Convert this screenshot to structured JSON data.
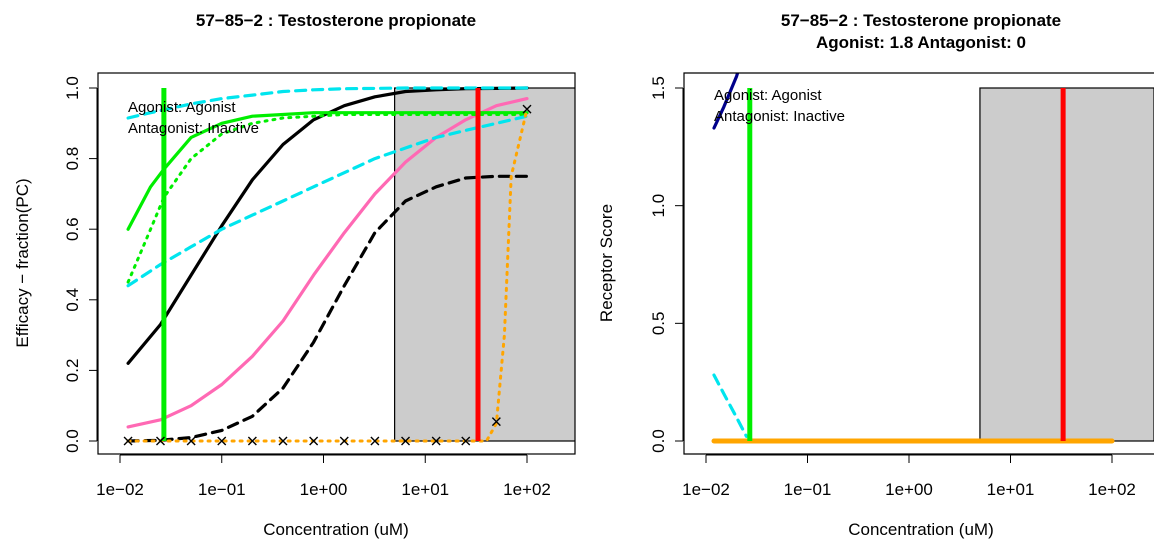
{
  "chart_data": [
    {
      "type": "line",
      "title": "57−85−2 : Testosterone propionate",
      "subtitle": "",
      "xlabel": "Concentration (uM)",
      "ylabel": "Efficacy − fraction(PC)",
      "xscale": "log",
      "xlim": [
        0.008,
        300
      ],
      "ylim": [
        -0.03,
        1.05
      ],
      "x_ticks": [
        0.01,
        0.1,
        1,
        10,
        100
      ],
      "x_tick_labels": [
        "1e−02",
        "1e−01",
        "1e+00",
        "1e+01",
        "1e+02"
      ],
      "y_ticks": [
        0,
        0.2,
        0.4,
        0.6,
        0.8,
        1.0
      ],
      "y_tick_labels": [
        "0.0",
        "0.2",
        "0.4",
        "0.6",
        "0.8",
        "1.0"
      ],
      "legend": [
        "Agonist: Agonist",
        "Antagonist: Inactive"
      ],
      "legend_position": "top-left",
      "grid": false,
      "shaded_region": {
        "x": [
          5,
          300
        ],
        "y": [
          0,
          1.0
        ],
        "color": "#cccccc"
      },
      "vlines": [
        {
          "x": 0.027,
          "color": "#00ee00"
        },
        {
          "x": 33,
          "color": "#ff0000"
        }
      ],
      "series": [
        {
          "style": "solid",
          "color": "#000000",
          "x": [
            0.012,
            0.025,
            0.05,
            0.1,
            0.2,
            0.4,
            0.8,
            1.6,
            3.2,
            6.4,
            12.8,
            25,
            50,
            100
          ],
          "y": [
            0.22,
            0.33,
            0.47,
            0.61,
            0.74,
            0.84,
            0.91,
            0.95,
            0.975,
            0.99,
            0.995,
            0.998,
            0.999,
            1.0
          ]
        },
        {
          "style": "dashed",
          "color": "#000000",
          "x": [
            0.012,
            0.025,
            0.05,
            0.1,
            0.2,
            0.4,
            0.8,
            1.6,
            3.2,
            6.4,
            12.8,
            25,
            50,
            100
          ],
          "y": [
            0.0,
            0.002,
            0.01,
            0.03,
            0.07,
            0.15,
            0.28,
            0.44,
            0.59,
            0.68,
            0.72,
            0.745,
            0.75,
            0.75
          ]
        },
        {
          "style": "solid",
          "color": "#ff69b4",
          "x": [
            0.012,
            0.025,
            0.05,
            0.1,
            0.2,
            0.4,
            0.8,
            1.6,
            3.2,
            6.4,
            12.8,
            25,
            50,
            100
          ],
          "y": [
            0.04,
            0.06,
            0.1,
            0.16,
            0.24,
            0.34,
            0.47,
            0.59,
            0.7,
            0.79,
            0.86,
            0.91,
            0.95,
            0.97
          ]
        },
        {
          "style": "solid",
          "color": "#00ee00",
          "x": [
            0.012,
            0.02,
            0.027,
            0.05,
            0.1,
            0.2,
            0.4,
            0.8,
            1.6,
            3.2,
            6.4,
            12.8,
            25,
            50,
            100
          ],
          "y": [
            0.6,
            0.72,
            0.77,
            0.86,
            0.9,
            0.92,
            0.925,
            0.93,
            0.93,
            0.93,
            0.93,
            0.93,
            0.93,
            0.93,
            0.93
          ]
        },
        {
          "style": "dotted",
          "color": "#00ee00",
          "x": [
            0.012,
            0.02,
            0.027,
            0.05,
            0.1,
            0.2,
            0.4,
            0.8,
            1.6,
            3.2,
            6.4,
            12.8,
            25,
            50,
            100
          ],
          "y": [
            0.45,
            0.6,
            0.69,
            0.8,
            0.87,
            0.9,
            0.915,
            0.92,
            0.925,
            0.925,
            0.925,
            0.925,
            0.925,
            0.925,
            0.925
          ]
        },
        {
          "style": "dashed",
          "color": "#00e5ee",
          "x": [
            0.012,
            0.02,
            0.05,
            0.1,
            0.2,
            0.4,
            0.8,
            1.6,
            3.2,
            6.4,
            12.8,
            25,
            50,
            100
          ],
          "y": [
            0.915,
            0.93,
            0.955,
            0.97,
            0.98,
            0.99,
            0.995,
            0.998,
            0.999,
            1.0,
            1.0,
            1.0,
            1.0,
            1.0
          ]
        },
        {
          "style": "dashed",
          "color": "#00e5ee",
          "x": [
            0.012,
            0.025,
            0.05,
            0.1,
            0.2,
            0.4,
            0.8,
            1.6,
            3.2,
            6.4,
            12.8,
            25,
            50,
            100
          ],
          "y": [
            0.44,
            0.5,
            0.55,
            0.6,
            0.64,
            0.68,
            0.72,
            0.76,
            0.8,
            0.83,
            0.86,
            0.88,
            0.9,
            0.92
          ]
        },
        {
          "style": "dotted",
          "color": "#ffa500",
          "x": [
            0.012,
            0.1,
            1,
            10,
            30,
            40,
            50,
            60,
            70,
            100
          ],
          "y": [
            0.0,
            0.0,
            0.0,
            0.0,
            0.0,
            0.0,
            0.05,
            0.3,
            0.75,
            0.94
          ]
        }
      ],
      "points": {
        "marker": "x",
        "color": "#000000",
        "x": [
          0.012,
          0.025,
          0.05,
          0.1,
          0.2,
          0.4,
          0.8,
          1.6,
          3.2,
          6.4,
          12.8,
          25,
          50,
          100
        ],
        "y": [
          0,
          0,
          0,
          0,
          0,
          0,
          0,
          0,
          0,
          0,
          0,
          0,
          0.055,
          0.94
        ]
      }
    },
    {
      "type": "line",
      "title": "57−85−2 : Testosterone propionate",
      "subtitle": "Agonist: 1.8  Antagonist: 0",
      "xlabel": "Concentration (uM)",
      "ylabel": "Receptor Score",
      "xscale": "log",
      "xlim": [
        0.008,
        300
      ],
      "ylim": [
        -0.045,
        1.575
      ],
      "x_ticks": [
        0.01,
        0.1,
        1,
        10,
        100
      ],
      "x_tick_labels": [
        "1e−02",
        "1e−01",
        "1e+00",
        "1e+01",
        "1e+02"
      ],
      "y_ticks": [
        0,
        0.5,
        1.0,
        1.5
      ],
      "y_tick_labels": [
        "0.0",
        "0.5",
        "1.0",
        "1.5"
      ],
      "legend": [
        "Agonist: Agonist",
        "Antagonist: Inactive"
      ],
      "legend_position": "top-left",
      "grid": false,
      "shaded_region": {
        "x": [
          5,
          300
        ],
        "y": [
          0,
          1.5
        ],
        "color": "#cccccc"
      },
      "vlines": [
        {
          "x": 0.027,
          "color": "#00ee00"
        },
        {
          "x": 33,
          "color": "#ff0000"
        }
      ],
      "series": [
        {
          "style": "solid",
          "color": "#00008b",
          "x": [
            0.012,
            0.015,
            0.02,
            0.03
          ],
          "y": [
            1.33,
            1.42,
            1.55,
            1.8
          ]
        },
        {
          "style": "dashed",
          "color": "#00e5ee",
          "x": [
            0.012,
            0.015,
            0.02,
            0.025
          ],
          "y": [
            0.28,
            0.2,
            0.1,
            0.02
          ]
        },
        {
          "style": "solid",
          "color": "#ffa500",
          "x": [
            0.012,
            100
          ],
          "y": [
            0.0,
            0.0
          ]
        }
      ]
    }
  ]
}
